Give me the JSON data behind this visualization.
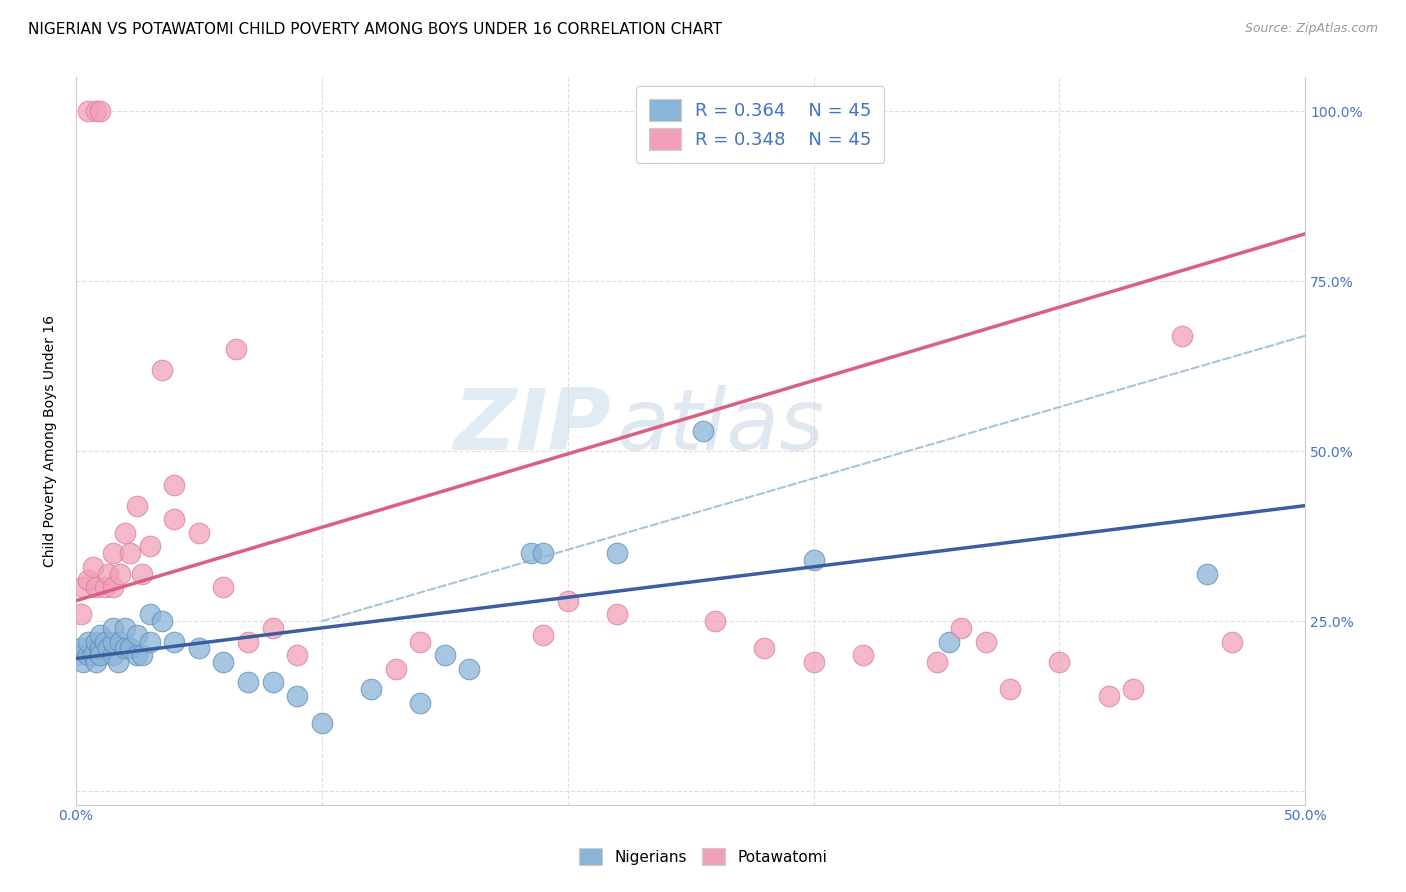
{
  "title": "NIGERIAN VS POTAWATOMI CHILD POVERTY AMONG BOYS UNDER 16 CORRELATION CHART",
  "source": "Source: ZipAtlas.com",
  "ylabel": "Child Poverty Among Boys Under 16",
  "xlim": [
    0.0,
    0.5
  ],
  "ylim": [
    -0.02,
    1.05
  ],
  "xticks": [
    0.0,
    0.1,
    0.2,
    0.3,
    0.4,
    0.5
  ],
  "yticks": [
    0.0,
    0.25,
    0.5,
    0.75,
    1.0
  ],
  "yticklabels_right": [
    "",
    "25.0%",
    "50.0%",
    "75.0%",
    "100.0%"
  ],
  "legend_label1": "Nigerians",
  "legend_label2": "Potawatomi",
  "blue_color": "#8ab4d8",
  "pink_color": "#f2a0b8",
  "blue_line_color": "#3a5fa0",
  "pink_line_color": "#d96080",
  "dashed_line_color": "#a8c4dc",
  "watermark": "ZIPatlas",
  "blue_scatter_x": [
    0.0,
    0.002,
    0.003,
    0.005,
    0.005,
    0.007,
    0.008,
    0.008,
    0.01,
    0.01,
    0.01,
    0.012,
    0.013,
    0.015,
    0.015,
    0.015,
    0.017,
    0.018,
    0.02,
    0.02,
    0.022,
    0.025,
    0.025,
    0.027,
    0.03,
    0.03,
    0.035,
    0.04,
    0.05,
    0.06,
    0.07,
    0.08,
    0.09,
    0.1,
    0.12,
    0.14,
    0.15,
    0.16,
    0.185,
    0.19,
    0.22,
    0.255,
    0.3,
    0.355,
    0.46
  ],
  "blue_scatter_y": [
    0.2,
    0.21,
    0.19,
    0.2,
    0.22,
    0.2,
    0.19,
    0.22,
    0.21,
    0.23,
    0.2,
    0.22,
    0.21,
    0.2,
    0.22,
    0.24,
    0.19,
    0.22,
    0.21,
    0.24,
    0.21,
    0.2,
    0.23,
    0.2,
    0.22,
    0.26,
    0.25,
    0.22,
    0.21,
    0.19,
    0.16,
    0.16,
    0.14,
    0.1,
    0.15,
    0.13,
    0.2,
    0.18,
    0.35,
    0.35,
    0.35,
    0.53,
    0.34,
    0.22,
    0.32
  ],
  "pink_scatter_x": [
    0.002,
    0.003,
    0.005,
    0.005,
    0.007,
    0.008,
    0.008,
    0.01,
    0.012,
    0.013,
    0.015,
    0.015,
    0.018,
    0.02,
    0.022,
    0.025,
    0.027,
    0.03,
    0.035,
    0.04,
    0.04,
    0.05,
    0.06,
    0.065,
    0.07,
    0.08,
    0.09,
    0.13,
    0.14,
    0.19,
    0.2,
    0.22,
    0.26,
    0.28,
    0.3,
    0.32,
    0.35,
    0.36,
    0.37,
    0.38,
    0.4,
    0.42,
    0.43,
    0.45,
    0.47
  ],
  "pink_scatter_y": [
    0.26,
    0.3,
    0.31,
    1.0,
    0.33,
    0.3,
    1.0,
    1.0,
    0.3,
    0.32,
    0.3,
    0.35,
    0.32,
    0.38,
    0.35,
    0.42,
    0.32,
    0.36,
    0.62,
    0.4,
    0.45,
    0.38,
    0.3,
    0.65,
    0.22,
    0.24,
    0.2,
    0.18,
    0.22,
    0.23,
    0.28,
    0.26,
    0.25,
    0.21,
    0.19,
    0.2,
    0.19,
    0.24,
    0.22,
    0.15,
    0.19,
    0.14,
    0.15,
    0.67,
    0.22
  ],
  "blue_line_x": [
    0.0,
    0.5
  ],
  "blue_line_y": [
    0.195,
    0.42
  ],
  "pink_line_x": [
    0.0,
    0.5
  ],
  "pink_line_y": [
    0.28,
    0.82
  ],
  "dashed_line_x": [
    0.1,
    0.5
  ],
  "dashed_line_y": [
    0.25,
    0.67
  ],
  "background_color": "#ffffff",
  "title_fontsize": 11,
  "axis_label_fontsize": 10,
  "tick_fontsize": 10,
  "grid_color": "#d8d8d8",
  "right_tick_color": "#4472c4",
  "bottom_tick_color": "#4472c4"
}
